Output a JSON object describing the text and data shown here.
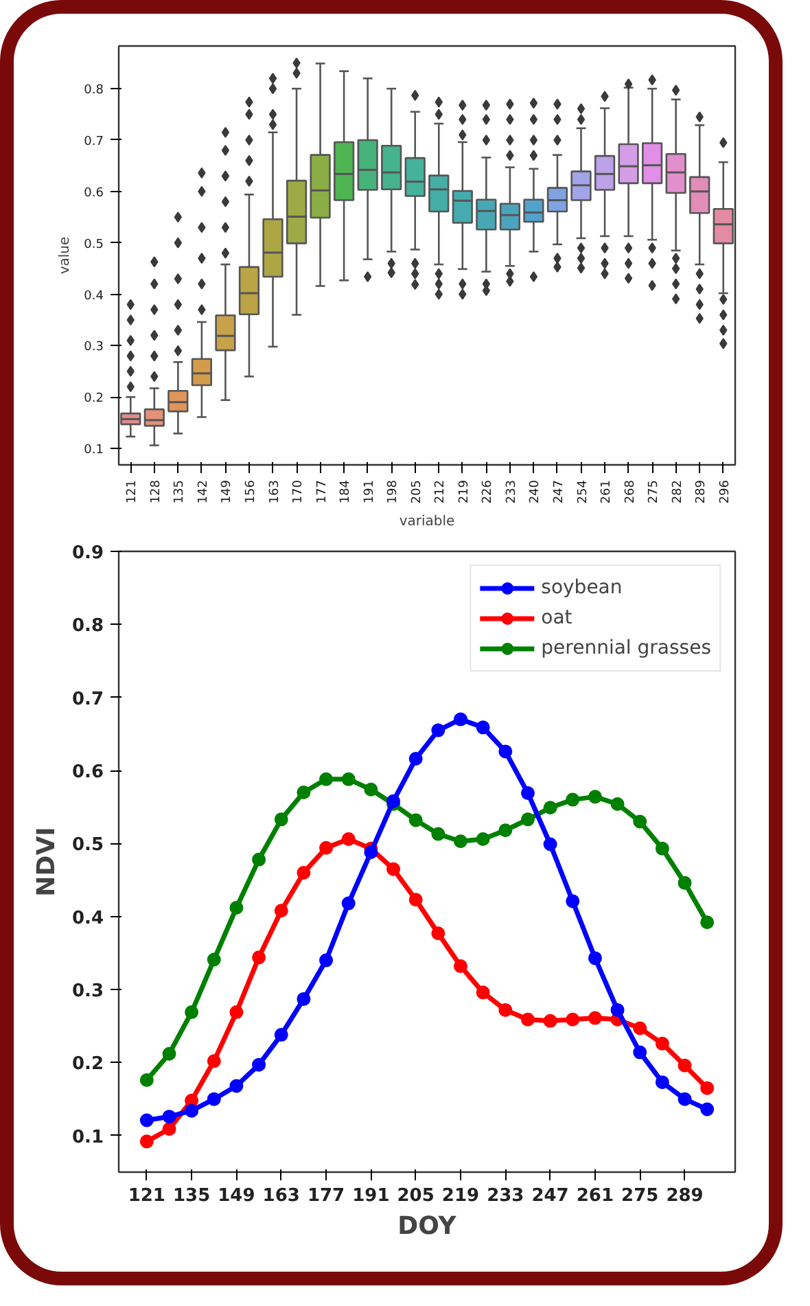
{
  "chart_data": [
    {
      "type": "box",
      "xlabel": "variable",
      "ylabel": "value",
      "categories": [
        "121",
        "128",
        "135",
        "142",
        "149",
        "156",
        "163",
        "170",
        "177",
        "184",
        "191",
        "198",
        "205",
        "212",
        "219",
        "226",
        "233",
        "240",
        "247",
        "254",
        "261",
        "268",
        "275",
        "282",
        "289",
        "296"
      ],
      "colors": [
        "#e58c8c",
        "#e4917a",
        "#e0955a",
        "#d39c4a",
        "#c8a24a",
        "#bba445",
        "#ada645",
        "#9eaa45",
        "#8aad45",
        "#4fb552",
        "#45b37a",
        "#45b38d",
        "#45b29c",
        "#45aea6",
        "#46abae",
        "#47a8b5",
        "#4aa4bd",
        "#52a2cf",
        "#7fa3e2",
        "#a2a4e8",
        "#bca2e8",
        "#d39ee6",
        "#e08ee6",
        "#e28fcc",
        "#e28cb8",
        "#e38aa4"
      ],
      "boxes": [
        {
          "low": 0.123,
          "q1": 0.147,
          "median": 0.157,
          "q3": 0.168,
          "high": 0.2,
          "outliers": [
            0.22,
            0.25,
            0.28,
            0.31,
            0.35,
            0.38
          ]
        },
        {
          "low": 0.106,
          "q1": 0.144,
          "median": 0.155,
          "q3": 0.176,
          "high": 0.217,
          "outliers": [
            0.24,
            0.28,
            0.32,
            0.37,
            0.42,
            0.463
          ]
        },
        {
          "low": 0.129,
          "q1": 0.172,
          "median": 0.19,
          "q3": 0.212,
          "high": 0.268,
          "outliers": [
            0.29,
            0.33,
            0.38,
            0.43,
            0.5,
            0.55
          ]
        },
        {
          "low": 0.161,
          "q1": 0.223,
          "median": 0.246,
          "q3": 0.274,
          "high": 0.346,
          "outliers": [
            0.37,
            0.42,
            0.47,
            0.53,
            0.6,
            0.636
          ]
        },
        {
          "low": 0.194,
          "q1": 0.291,
          "median": 0.319,
          "q3": 0.359,
          "high": 0.458,
          "outliers": [
            0.48,
            0.53,
            0.58,
            0.63,
            0.68,
            0.715
          ]
        },
        {
          "low": 0.24,
          "q1": 0.361,
          "median": 0.402,
          "q3": 0.453,
          "high": 0.594,
          "outliers": [
            0.62,
            0.66,
            0.7,
            0.75,
            0.774
          ]
        },
        {
          "low": 0.298,
          "q1": 0.434,
          "median": 0.481,
          "q3": 0.546,
          "high": 0.715,
          "outliers": [
            0.73,
            0.75,
            0.8,
            0.82
          ]
        },
        {
          "low": 0.36,
          "q1": 0.499,
          "median": 0.551,
          "q3": 0.621,
          "high": 0.8,
          "outliers": [
            0.83,
            0.85
          ]
        },
        {
          "low": 0.416,
          "q1": 0.549,
          "median": 0.602,
          "q3": 0.671,
          "high": 0.849
        },
        {
          "low": 0.427,
          "q1": 0.583,
          "median": 0.634,
          "q3": 0.696,
          "high": 0.834
        },
        {
          "low": 0.468,
          "q1": 0.603,
          "median": 0.642,
          "q3": 0.7,
          "high": 0.82,
          "outliers": [
            0.434
          ]
        },
        {
          "low": 0.483,
          "q1": 0.604,
          "median": 0.637,
          "q3": 0.689,
          "high": 0.8,
          "outliers": [
            0.442,
            0.46
          ]
        },
        {
          "low": 0.487,
          "q1": 0.591,
          "median": 0.619,
          "q3": 0.665,
          "high": 0.755,
          "outliers": [
            0.787,
            0.419,
            0.44,
            0.46
          ]
        },
        {
          "low": 0.458,
          "q1": 0.561,
          "median": 0.604,
          "q3": 0.631,
          "high": 0.732,
          "outliers": [
            0.774,
            0.75,
            0.4,
            0.42,
            0.44
          ]
        },
        {
          "low": 0.449,
          "q1": 0.539,
          "median": 0.582,
          "q3": 0.601,
          "high": 0.696,
          "outliers": [
            0.768,
            0.74,
            0.71,
            0.4,
            0.42
          ]
        },
        {
          "low": 0.444,
          "q1": 0.526,
          "median": 0.562,
          "q3": 0.584,
          "high": 0.666,
          "outliers": [
            0.768,
            0.74,
            0.7,
            0.407,
            0.42
          ]
        },
        {
          "low": 0.455,
          "q1": 0.526,
          "median": 0.554,
          "q3": 0.576,
          "high": 0.647,
          "outliers": [
            0.77,
            0.74,
            0.7,
            0.67,
            0.425,
            0.44
          ]
        },
        {
          "low": 0.483,
          "q1": 0.541,
          "median": 0.559,
          "q3": 0.584,
          "high": 0.644,
          "outliers": [
            0.772,
            0.74,
            0.7,
            0.67,
            0.434
          ]
        },
        {
          "low": 0.497,
          "q1": 0.561,
          "median": 0.583,
          "q3": 0.607,
          "high": 0.671,
          "outliers": [
            0.77,
            0.74,
            0.7,
            0.453,
            0.47
          ]
        },
        {
          "low": 0.509,
          "q1": 0.583,
          "median": 0.612,
          "q3": 0.639,
          "high": 0.723,
          "outliers": [
            0.761,
            0.74,
            0.451,
            0.47,
            0.49
          ]
        },
        {
          "low": 0.513,
          "q1": 0.603,
          "median": 0.634,
          "q3": 0.669,
          "high": 0.762,
          "outliers": [
            0.785,
            0.44,
            0.46,
            0.49
          ]
        },
        {
          "low": 0.513,
          "q1": 0.616,
          "median": 0.649,
          "q3": 0.692,
          "high": 0.802,
          "outliers": [
            0.809,
            0.431,
            0.46,
            0.49
          ]
        },
        {
          "low": 0.506,
          "q1": 0.616,
          "median": 0.651,
          "q3": 0.694,
          "high": 0.8,
          "outliers": [
            0.817,
            0.417,
            0.46,
            0.49
          ]
        },
        {
          "low": 0.485,
          "q1": 0.597,
          "median": 0.637,
          "q3": 0.673,
          "high": 0.779,
          "outliers": [
            0.797,
            0.391,
            0.42,
            0.45,
            0.47
          ]
        },
        {
          "low": 0.458,
          "q1": 0.558,
          "median": 0.6,
          "q3": 0.628,
          "high": 0.729,
          "outliers": [
            0.745,
            0.353,
            0.38,
            0.41,
            0.44
          ]
        },
        {
          "low": 0.402,
          "q1": 0.499,
          "median": 0.536,
          "q3": 0.566,
          "high": 0.657,
          "outliers": [
            0.695,
            0.304,
            0.33,
            0.36,
            0.39
          ]
        }
      ],
      "ylim": [
        0.068,
        0.883
      ],
      "yticks": [
        0.1,
        0.2,
        0.3,
        0.4,
        0.5,
        0.6,
        0.7,
        0.8
      ],
      "grid": false
    },
    {
      "type": "line",
      "xlabel": "DOY",
      "ylabel": "NDVI",
      "x": [
        121,
        128,
        135,
        142,
        149,
        156,
        163,
        170,
        177,
        184,
        191,
        198,
        205,
        212,
        219,
        226,
        233,
        240,
        247,
        254,
        261,
        268,
        275,
        282,
        289,
        296
      ],
      "series": [
        {
          "name": "soybean",
          "color": "#0000ff",
          "values": [
            0.121,
            0.126,
            0.134,
            0.15,
            0.168,
            0.197,
            0.238,
            0.287,
            0.34,
            0.418,
            0.488,
            0.558,
            0.616,
            0.655,
            0.67,
            0.659,
            0.626,
            0.569,
            0.499,
            0.421,
            0.343,
            0.272,
            0.214,
            0.173,
            0.15,
            0.136
          ]
        },
        {
          "name": "oat",
          "color": "#ff0000",
          "values": [
            0.092,
            0.109,
            0.148,
            0.202,
            0.269,
            0.344,
            0.408,
            0.46,
            0.494,
            0.506,
            0.493,
            0.465,
            0.423,
            0.377,
            0.332,
            0.296,
            0.272,
            0.259,
            0.257,
            0.259,
            0.261,
            0.259,
            0.247,
            0.226,
            0.196,
            0.165
          ]
        },
        {
          "name": "perennial grasses",
          "color": "#008000",
          "values": [
            0.176,
            0.212,
            0.269,
            0.341,
            0.412,
            0.478,
            0.533,
            0.57,
            0.588,
            0.588,
            0.574,
            0.554,
            0.532,
            0.513,
            0.503,
            0.506,
            0.518,
            0.533,
            0.549,
            0.56,
            0.564,
            0.554,
            0.53,
            0.493,
            0.446,
            0.392
          ]
        }
      ],
      "xlim": [
        112.25,
        304.75
      ],
      "xticks": [
        121,
        135,
        149,
        163,
        177,
        191,
        205,
        219,
        233,
        247,
        261,
        275,
        289
      ],
      "ylim": [
        0.05,
        0.9
      ],
      "yticks": [
        0.1,
        0.2,
        0.3,
        0.4,
        0.5,
        0.6,
        0.7,
        0.8,
        0.9
      ],
      "marker": "circle",
      "line_style": "solid",
      "grid": false,
      "legend": "top right"
    }
  ]
}
